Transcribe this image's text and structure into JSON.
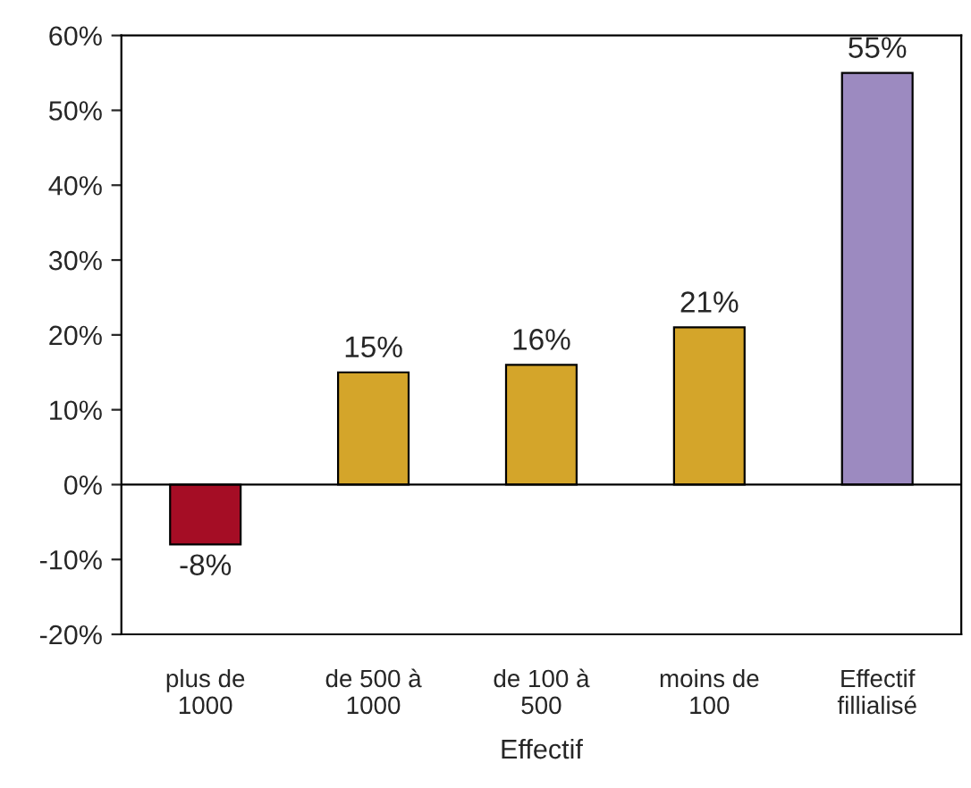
{
  "chart_data": {
    "type": "bar",
    "xlabel": "Effectif",
    "categories": [
      "plus de\n1000",
      "de 500 à\n1000",
      "de 100 à\n500",
      "moins de\n100",
      "Effectif\nfillialisé"
    ],
    "values": [
      -8,
      15,
      16,
      21,
      55
    ],
    "colors": [
      "#a50d25",
      "#d4a52a",
      "#d4a52a",
      "#d4a52a",
      "#9c8ac0"
    ],
    "value_labels": [
      "-8%",
      "15%",
      "16%",
      "21%",
      "55%"
    ],
    "ylim": [
      -20,
      60
    ],
    "yticks": [
      {
        "value": -20,
        "label": "-20%"
      },
      {
        "value": -10,
        "label": "-10%"
      },
      {
        "value": 0,
        "label": "0%"
      },
      {
        "value": 10,
        "label": "10%"
      },
      {
        "value": 20,
        "label": "20%"
      },
      {
        "value": 30,
        "label": "30%"
      },
      {
        "value": 40,
        "label": "40%"
      },
      {
        "value": 50,
        "label": "50%"
      },
      {
        "value": 60,
        "label": "60%"
      }
    ],
    "legend": false
  }
}
